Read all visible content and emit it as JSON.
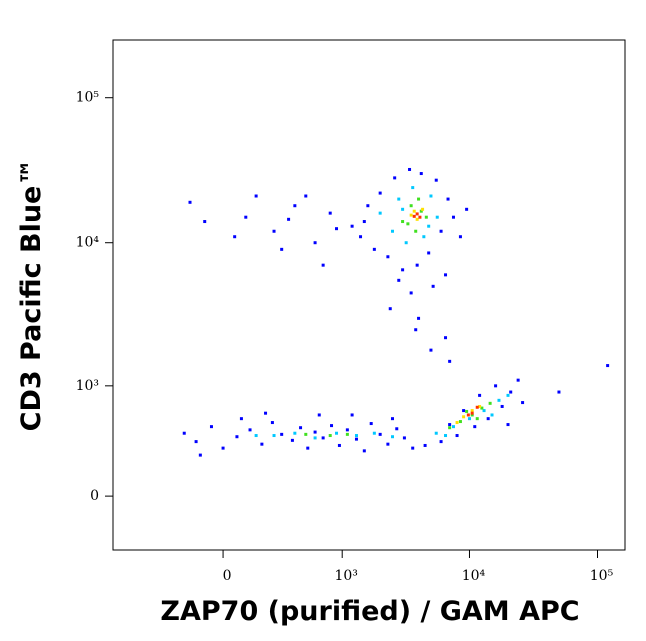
{
  "chart_data": {
    "type": "scatter",
    "xlabel": "ZAP70 (purified) / GAM APC",
    "ylabel": "CD3 Pacific Blue™",
    "xscale": "biexponential",
    "yscale": "biexponential",
    "xlim": [
      -845,
      164000
    ],
    "ylim": [
      -345,
      250000
    ],
    "xticks": [
      0,
      {
        "value": 1000,
        "label": "10³"
      },
      {
        "value": 10000,
        "label": "10⁴"
      },
      {
        "value": 100000,
        "label": "10⁵"
      }
    ],
    "yticks": [
      0,
      {
        "value": 1000,
        "label": "10³"
      },
      {
        "value": 10000,
        "label": "10⁴"
      },
      {
        "value": 100000,
        "label": "10⁵"
      }
    ],
    "series": [
      {
        "color": "#0000ff",
        "x": [
          1500,
          1800,
          2000,
          2300,
          2600,
          3000,
          3400,
          3900,
          4200,
          4800,
          5500,
          6000,
          6800,
          7500,
          8500,
          1400,
          1600,
          2800,
          3500,
          5200,
          4000,
          2400,
          6500,
          9500,
          1200,
          -150,
          100,
          250,
          400,
          600,
          800,
          300,
          50,
          500,
          700,
          -80,
          900,
          150,
          350,
          -180,
          -120,
          -50,
          0,
          60,
          120,
          180,
          240,
          300,
          380,
          450,
          520,
          600,
          700,
          820,
          950,
          1100,
          1300,
          1500,
          1700,
          2000,
          2300,
          2700,
          3100,
          3600,
          -100,
          80,
          200,
          650,
          1200,
          2500,
          4500,
          6000,
          8000,
          11000,
          14000,
          18000,
          21000,
          24000,
          16000,
          12000,
          9000,
          7000,
          20000,
          26000,
          3800,
          5000,
          7000,
          50000,
          120000,
          6500
        ],
        "values": [
          14000,
          9000,
          22000,
          8000,
          28000,
          6500,
          32000,
          7000,
          30000,
          8500,
          27000,
          12000,
          20000,
          15000,
          11000,
          11000,
          18000,
          5500,
          4500,
          5000,
          3000,
          3500,
          6000,
          17000,
          13000,
          19000,
          15000,
          12000,
          18000,
          10000,
          16000,
          9000,
          11000,
          21000,
          7000,
          14000,
          12500,
          21000,
          14500,
          420,
          350,
          480,
          300,
          390,
          450,
          330,
          520,
          410,
          360,
          470,
          300,
          430,
          380,
          490,
          320,
          450,
          370,
          280,
          510,
          410,
          330,
          460,
          380,
          300,
          250,
          560,
          620,
          600,
          600,
          560,
          320,
          350,
          400,
          480,
          560,
          700,
          900,
          1100,
          1000,
          850,
          650,
          500,
          500,
          750,
          2500,
          1800,
          1500,
          900,
          1400,
          2200
        ]
      },
      {
        "color": "#00c8ff",
        "x": [
          2000,
          2500,
          2800,
          3200,
          3600,
          4400,
          5000,
          5600,
          3000,
          4800,
          250,
          400,
          600,
          900,
          1300,
          1800,
          2500,
          150,
          5500,
          7500,
          10000,
          13000,
          17000,
          20000,
          6500,
          15000
        ],
        "values": [
          16000,
          12000,
          20000,
          10000,
          24000,
          11000,
          21000,
          15000,
          17000,
          13000,
          400,
          420,
          380,
          420,
          400,
          420,
          390,
          400,
          420,
          480,
          560,
          650,
          780,
          850,
          400,
          600
        ]
      },
      {
        "color": "#40e020",
        "x": [
          3000,
          3500,
          3800,
          4200,
          4600,
          3300,
          4000,
          500,
          800,
          1100,
          7000,
          8500,
          10500,
          12500,
          14500,
          9500,
          11500
        ],
        "values": [
          14000,
          18000,
          12000,
          16500,
          15000,
          13500,
          20000,
          410,
          400,
          410,
          470,
          530,
          600,
          680,
          740,
          640,
          560
        ]
      },
      {
        "color": "#ffe000",
        "x": [
          3500,
          3900,
          4300,
          3700,
          9000,
          10500,
          12000,
          8000
        ],
        "values": [
          15500,
          14500,
          17000,
          16500,
          580,
          650,
          700,
          520
        ]
      },
      {
        "color": "#ff3000",
        "x": [
          3900,
          4100,
          3700,
          10500,
          11500,
          9800
        ],
        "values": [
          15800,
          15000,
          15200,
          620,
          690,
          600
        ]
      }
    ]
  }
}
